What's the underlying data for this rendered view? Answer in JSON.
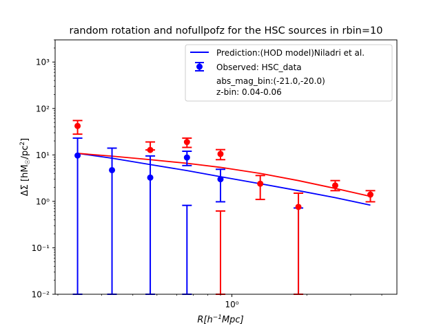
{
  "chart_data": {
    "type": "scatter",
    "title": "random rotation and nofullpofz for the HSC sources in rbin=10",
    "xlabel": "R[h^-1 Mpc]",
    "ylabel": "ΔΣ [hM☉/pc²]",
    "xscale": "log",
    "yscale": "log",
    "xlim": [
      0.195,
      4.6
    ],
    "ylim": [
      0.01,
      3000
    ],
    "x_ticks": [
      {
        "value": 1,
        "label": "10⁰"
      }
    ],
    "y_ticks": [
      {
        "value": 0.01,
        "label": "10⁻²"
      },
      {
        "value": 0.1,
        "label": "10⁻¹"
      },
      {
        "value": 1,
        "label": "10⁰"
      },
      {
        "value": 10,
        "label": "10¹"
      },
      {
        "value": 100,
        "label": "10²"
      },
      {
        "value": 1000,
        "label": "10³"
      }
    ],
    "legend": {
      "placement": "top-right",
      "entries": [
        {
          "label": "Prediction:(HOD model)Niladri et al.",
          "color": "#0000ff",
          "kind": "line"
        },
        {
          "label": "Observed: HSC_data",
          "color": "#0000ff",
          "kind": "errorbar"
        }
      ],
      "notes": [
        "abs_mag_bin:(-21.0,-20.0)",
        "z-bin: 0.04-0.06"
      ]
    },
    "series": [
      {
        "color": "#0000ff",
        "kind": "prediction_line",
        "x": [
          0.24,
          0.33,
          0.47,
          0.66,
          0.9,
          1.3,
          1.85,
          2.6,
          3.6
        ],
        "y": [
          10.8,
          8.5,
          6.2,
          4.6,
          3.4,
          2.4,
          1.7,
          1.2,
          0.83
        ]
      },
      {
        "color": "#ff0000",
        "kind": "prediction_line",
        "x": [
          0.24,
          0.33,
          0.47,
          0.66,
          0.9,
          1.3,
          1.85,
          2.6,
          3.6
        ],
        "y": [
          10.8,
          9.4,
          7.9,
          6.6,
          5.4,
          4.0,
          2.8,
          1.9,
          1.28
        ]
      },
      {
        "color": "#0000ff",
        "kind": "observed",
        "x": [
          0.24,
          0.33,
          0.47,
          0.66,
          0.9,
          1.85
        ],
        "y": [
          9.7,
          4.7,
          3.25,
          8.8,
          3.0,
          null
        ],
        "yerr_low": [
          0.01,
          0.01,
          0.01,
          5.9,
          0.98,
          0.01
        ],
        "yerr_high": [
          23.0,
          14.0,
          9.5,
          12.0,
          4.9,
          0.72
        ]
      },
      {
        "color": "#ff0000",
        "kind": "observed",
        "x": [
          0.24,
          0.47,
          0.66,
          0.9,
          1.3,
          1.85,
          2.6,
          3.6
        ],
        "y": [
          42.0,
          12.8,
          19.0,
          10.5,
          2.4,
          0.76,
          2.2,
          1.4
        ],
        "yerr_low": [
          28.0,
          12.8,
          14.5,
          7.9,
          1.1,
          0.01,
          1.7,
          0.98
        ],
        "yerr_high": [
          55.0,
          19.0,
          23.0,
          13.0,
          3.6,
          1.5,
          2.8,
          1.7
        ]
      }
    ],
    "extra_errorbars": [
      {
        "color": "#0000ff",
        "x": 0.66,
        "low": 0.01,
        "high": 0.82
      },
      {
        "color": "#ff0000",
        "x": 0.9,
        "low": 0.01,
        "high": 0.62
      }
    ]
  }
}
